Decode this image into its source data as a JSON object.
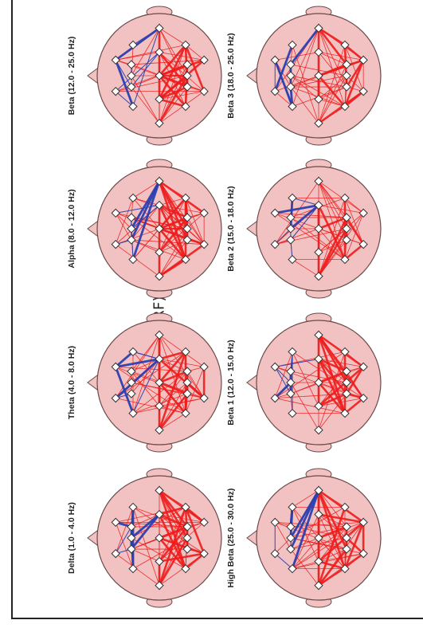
{
  "title": "Puntuación Z (TRF) de la coherencia",
  "colors": {
    "head_fill": "#f2c1c1",
    "head_stroke": "#6a4a4a",
    "positive": "#ee1c1c",
    "negative": "#2a3fb0",
    "electrode": "#ffffff"
  },
  "panels": [
    {
      "label": "Beta (12.0 - 25.0 Hz)",
      "seed": 3
    },
    {
      "label": "Alpha (8.0 - 12.0 Hz)",
      "seed": 7
    },
    {
      "label": "Theta (4.0 - 8.0 Hz)",
      "seed": 11
    },
    {
      "label": "Delta (1.0 - 4.0 Hz)",
      "seed": 19
    },
    {
      "label": "Beta 3 (18.0 - 25.0 Hz)",
      "seed": 23
    },
    {
      "label": "Beta 2 (15.0 - 18.0 Hz)",
      "seed": 29
    },
    {
      "label": "Beta 1 (12.0 - 15.0 Hz)",
      "seed": 31
    },
    {
      "label": "High Beta (25.0 - 30.0 Hz)",
      "seed": 37
    }
  ]
}
